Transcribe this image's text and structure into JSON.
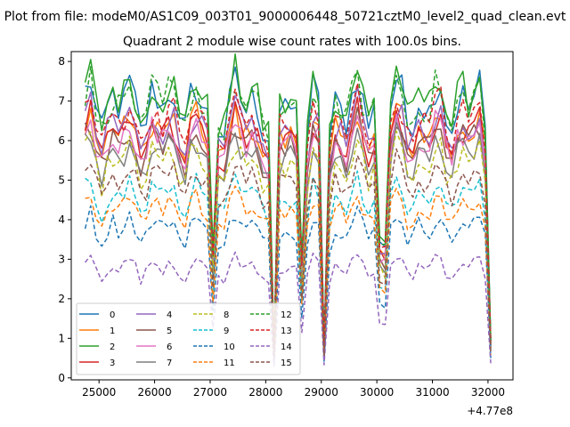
{
  "figure": {
    "suptitle": "Plot from file: modeM0/AS1C09_003T01_9000006448_50721cztM0_level2_quad_clean.evt",
    "title": "Quadrant 2 module wise count rates with 100.0s bins.",
    "x_offset_label": "+4.77e8"
  },
  "chart_data": {
    "type": "line",
    "title": "Quadrant 2 module wise count rates with 100.0s bins.",
    "xlabel": "",
    "ylabel": "",
    "x_offset": 477000000,
    "xlim": [
      24500,
      32450
    ],
    "ylim": [
      -0.05,
      8.25
    ],
    "xticks": [
      25000,
      26000,
      27000,
      28000,
      29000,
      30000,
      31000,
      32000
    ],
    "xtick_labels": [
      "25000",
      "26000",
      "27000",
      "28000",
      "29000",
      "30000",
      "31000",
      "32000"
    ],
    "yticks": [
      0,
      1,
      2,
      3,
      4,
      5,
      6,
      7,
      8
    ],
    "ytick_labels": [
      "0",
      "1",
      "2",
      "3",
      "4",
      "5",
      "6",
      "7",
      "8"
    ],
    "grid": false,
    "legend": {
      "placement": "lower-left",
      "columns": 4
    },
    "x_start": 24750,
    "x_step": 100,
    "n_points": 74,
    "dips": [
      {
        "center": 27050,
        "depth": 0.55
      },
      {
        "center": 28150,
        "depth": 0.9
      },
      {
        "center": 28650,
        "depth": 0.55
      },
      {
        "center": 29050,
        "depth": 0.88
      },
      {
        "center": 30100,
        "depth": 0.9
      },
      {
        "center": 32050,
        "depth": 0.85
      }
    ],
    "series": [
      {
        "name": "0",
        "color": "#1f77b4",
        "dash": false,
        "level": 6.9
      },
      {
        "name": "1",
        "color": "#ff7f0e",
        "dash": false,
        "level": 6.2
      },
      {
        "name": "2",
        "color": "#2ca02c",
        "dash": false,
        "level": 7.1
      },
      {
        "name": "3",
        "color": "#d62728",
        "dash": false,
        "level": 6.1
      },
      {
        "name": "4",
        "color": "#9467bd",
        "dash": false,
        "level": 6.3
      },
      {
        "name": "5",
        "color": "#8c564b",
        "dash": false,
        "level": 5.9
      },
      {
        "name": "6",
        "color": "#e377c2",
        "dash": false,
        "level": 6.0
      },
      {
        "name": "7",
        "color": "#7f7f7f",
        "dash": false,
        "level": 5.6
      },
      {
        "name": "8",
        "color": "#bcbd22",
        "dash": true,
        "level": 5.4
      },
      {
        "name": "9",
        "color": "#17becf",
        "dash": true,
        "level": 4.6
      },
      {
        "name": "10",
        "color": "#1f77b4",
        "dash": true,
        "level": 3.8
      },
      {
        "name": "11",
        "color": "#ff7f0e",
        "dash": true,
        "level": 4.3
      },
      {
        "name": "12",
        "color": "#2ca02c",
        "dash": true,
        "level": 6.9
      },
      {
        "name": "13",
        "color": "#d62728",
        "dash": true,
        "level": 6.5
      },
      {
        "name": "14",
        "color": "#9467bd",
        "dash": true,
        "level": 2.8
      },
      {
        "name": "15",
        "color": "#8c564b",
        "dash": true,
        "level": 5.0
      }
    ]
  }
}
